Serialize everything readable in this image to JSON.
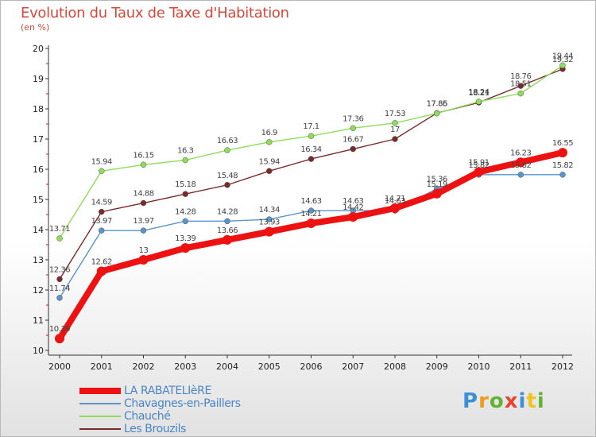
{
  "header": {
    "title": "Evolution du Taux de Taxe d'Habitation",
    "unit": "(en %)"
  },
  "brand": {
    "letters": [
      "P",
      "r",
      "o",
      "x",
      "i",
      "t",
      "i"
    ],
    "colors": [
      "#3d8fd8",
      "#f29a1e",
      "#62b334",
      "#e8432d",
      "#3d8fd8",
      "#f2c21e",
      "#62b334"
    ]
  },
  "chart_data": {
    "type": "line",
    "x": [
      "2000",
      "2001",
      "2002",
      "2003",
      "2004",
      "2005",
      "2006",
      "2007",
      "2008",
      "2009",
      "2010",
      "2011",
      "2012"
    ],
    "ylim": [
      10,
      20
    ],
    "yticks": [
      "10",
      "11",
      "12",
      "13",
      "14",
      "15",
      "16",
      "17",
      "18",
      "19",
      "20"
    ],
    "grid": false,
    "legend": "bottom-left",
    "series": [
      {
        "name": "LA RABATELIèRE",
        "color": "#ee1111",
        "values": [
          10.39,
          12.62,
          13,
          13.39,
          13.66,
          13.93,
          14.21,
          14.42,
          14.71,
          15.19,
          15.91,
          16.23,
          16.55
        ],
        "labels": [
          "10.39",
          "12.62",
          "13",
          "13.39",
          "13.66",
          "13.93",
          "14.21",
          "14.42",
          "14.71",
          "15.19",
          "15.91",
          "16.23",
          "16.55"
        ]
      },
      {
        "name": "Chavagnes-en-Paillers",
        "color": "#5b94c8",
        "values": [
          11.74,
          13.97,
          13.97,
          14.28,
          14.28,
          14.34,
          14.63,
          14.63,
          14.63,
          15.36,
          15.82,
          15.82,
          15.82
        ],
        "labels": [
          "11.74",
          "13.97",
          "13.97",
          "14.28",
          "14.28",
          "14.34",
          "14.63",
          "14.63",
          "14.63",
          "15.36",
          "15.82",
          "15.82",
          "15.82"
        ]
      },
      {
        "name": "Chauché",
        "color": "#8fdc5a",
        "values": [
          13.71,
          15.94,
          16.15,
          16.3,
          16.63,
          16.9,
          17.1,
          17.36,
          17.53,
          17.85,
          18.24,
          18.51,
          19.44
        ],
        "labels": [
          "13.71",
          "15.94",
          "16.15",
          "16.3",
          "16.63",
          "16.9",
          "17.1",
          "17.36",
          "17.53",
          "17.85",
          "18.24",
          "18.51",
          "19.44"
        ]
      },
      {
        "name": "Les Brouzils",
        "color": "#7a2a2a",
        "values": [
          12.36,
          14.59,
          14.88,
          15.18,
          15.48,
          15.94,
          16.34,
          16.67,
          17,
          17.86,
          18.21,
          18.76,
          19.32
        ],
        "labels": [
          "12.36",
          "14.59",
          "14.88",
          "15.18",
          "15.48",
          "15.94",
          "16.34",
          "16.67",
          "17",
          "17.86",
          "18.21",
          "18.76",
          "19.32"
        ]
      }
    ]
  }
}
